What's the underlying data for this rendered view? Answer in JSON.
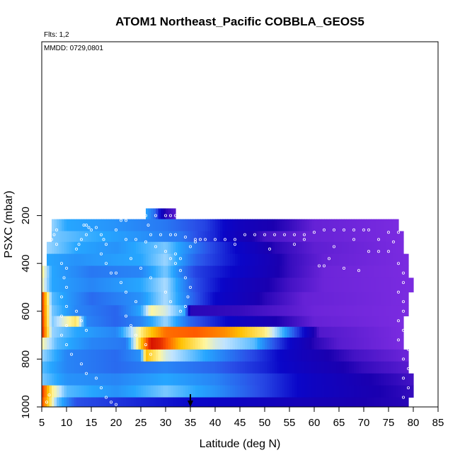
{
  "chart_data": {
    "type": "heatmap",
    "title": "ATOM1 Northeast_Pacific COBBLA_GEOS5",
    "subtitle_flights": "Flts: 1,2",
    "subtitle_dates": "MMDD: 0729,0801",
    "xlabel": "Latitude (deg N)",
    "ylabel": "PSXC (mbar)",
    "xlim": [
      5,
      85
    ],
    "ylim": [
      0,
      1000
    ],
    "y_reversed": true,
    "xticks": [
      5,
      10,
      15,
      20,
      25,
      30,
      35,
      40,
      45,
      50,
      55,
      60,
      65,
      70,
      75,
      80,
      85
    ],
    "yticks": [
      200,
      400,
      600,
      800,
      1000
    ],
    "grid": false,
    "arrow_marker_lat": 35,
    "colors": {
      "red": "#d40000",
      "orange": "#ff8a00",
      "yellow": "#ffe830",
      "light_cyan": "#cfeaff",
      "sky_blue": "#1e9bff",
      "mid_blue": "#1f55e6",
      "dark_blue": "#05009a",
      "purple": "#7a2be0",
      "violet": "#9a45ee"
    },
    "color_scale": [
      [
        0.0,
        "#7a2be0"
      ],
      [
        0.14,
        "#1a00b0"
      ],
      [
        0.3,
        "#0a06c8"
      ],
      [
        0.42,
        "#2a50e8"
      ],
      [
        0.55,
        "#26a6ff"
      ],
      [
        0.64,
        "#bfe3ff"
      ],
      [
        0.7,
        "#fff7a0"
      ],
      [
        0.8,
        "#ffc000"
      ],
      [
        0.9,
        "#ff5a00"
      ],
      [
        1.0,
        "#cc0000"
      ]
    ],
    "bands": [
      {
        "p_top": 170,
        "p_bot": 215,
        "lat_min": 26,
        "lat_max": 32,
        "stops": [
          [
            26,
            0.55
          ],
          [
            28,
            0.45
          ],
          [
            30,
            0.12
          ],
          [
            32,
            0.05
          ]
        ]
      },
      {
        "p_top": 215,
        "p_bot": 265,
        "lat_min": 7,
        "lat_max": 77,
        "stops": [
          [
            7,
            0.62
          ],
          [
            10,
            0.55
          ],
          [
            20,
            0.52
          ],
          [
            30,
            0.48
          ],
          [
            38,
            0.4
          ],
          [
            45,
            0.22
          ],
          [
            55,
            0.1
          ],
          [
            60,
            0.03
          ],
          [
            77,
            0.0
          ]
        ]
      },
      {
        "p_top": 265,
        "p_bot": 310,
        "lat_min": 7,
        "lat_max": 78,
        "stops": [
          [
            7,
            0.6
          ],
          [
            15,
            0.56
          ],
          [
            25,
            0.52
          ],
          [
            33,
            0.48
          ],
          [
            40,
            0.35
          ],
          [
            45,
            0.2
          ],
          [
            50,
            0.08
          ],
          [
            58,
            0.03
          ],
          [
            78,
            0.0
          ]
        ]
      },
      {
        "p_top": 310,
        "p_bot": 360,
        "lat_min": 6,
        "lat_max": 78,
        "stops": [
          [
            6,
            0.62
          ],
          [
            12,
            0.55
          ],
          [
            20,
            0.52
          ],
          [
            30,
            0.6
          ],
          [
            35,
            0.5
          ],
          [
            42,
            0.35
          ],
          [
            52,
            0.12
          ],
          [
            60,
            0.04
          ],
          [
            78,
            0.0
          ]
        ]
      },
      {
        "p_top": 360,
        "p_bot": 410,
        "lat_min": 6,
        "lat_max": 79,
        "stops": [
          [
            6,
            0.55
          ],
          [
            12,
            0.52
          ],
          [
            25,
            0.55
          ],
          [
            30,
            0.62
          ],
          [
            36,
            0.45
          ],
          [
            45,
            0.3
          ],
          [
            55,
            0.1
          ],
          [
            62,
            0.03
          ],
          [
            79,
            0.0
          ]
        ]
      },
      {
        "p_top": 410,
        "p_bot": 460,
        "lat_min": 5,
        "lat_max": 79,
        "stops": [
          [
            5,
            0.72
          ],
          [
            7,
            0.55
          ],
          [
            15,
            0.48
          ],
          [
            25,
            0.5
          ],
          [
            30,
            0.6
          ],
          [
            36,
            0.4
          ],
          [
            45,
            0.28
          ],
          [
            55,
            0.1
          ],
          [
            62,
            0.02
          ],
          [
            79,
            0.0
          ]
        ]
      },
      {
        "p_top": 460,
        "p_bot": 520,
        "lat_min": 5,
        "lat_max": 80,
        "stops": [
          [
            5,
            0.7
          ],
          [
            7,
            0.55
          ],
          [
            15,
            0.5
          ],
          [
            25,
            0.55
          ],
          [
            30,
            0.63
          ],
          [
            36,
            0.42
          ],
          [
            45,
            0.22
          ],
          [
            55,
            0.08
          ],
          [
            62,
            0.02
          ],
          [
            80,
            0.0
          ]
        ]
      },
      {
        "p_top": 520,
        "p_bot": 575,
        "lat_min": 5,
        "lat_max": 79,
        "stops": [
          [
            5,
            0.95
          ],
          [
            7,
            0.58
          ],
          [
            15,
            0.46
          ],
          [
            25,
            0.52
          ],
          [
            30,
            0.63
          ],
          [
            34,
            0.5
          ],
          [
            40,
            0.3
          ],
          [
            50,
            0.12
          ],
          [
            58,
            0.03
          ],
          [
            79,
            0.0
          ]
        ]
      },
      {
        "p_top": 575,
        "p_bot": 620,
        "lat_min": 5,
        "lat_max": 79,
        "stops": [
          [
            5,
            0.95
          ],
          [
            7,
            0.6
          ],
          [
            12,
            0.5
          ],
          [
            20,
            0.45
          ],
          [
            25,
            0.55
          ],
          [
            27,
            0.7
          ],
          [
            30,
            0.66
          ],
          [
            34,
            0.55
          ],
          [
            35,
            0.12
          ],
          [
            45,
            0.1
          ],
          [
            55,
            0.05
          ],
          [
            60,
            0.02
          ],
          [
            79,
            0.0
          ]
        ]
      },
      {
        "p_top": 620,
        "p_bot": 665,
        "lat_min": 5,
        "lat_max": 78,
        "stops": [
          [
            5,
            0.96
          ],
          [
            7,
            0.6
          ],
          [
            12,
            0.74
          ],
          [
            14,
            0.5
          ],
          [
            20,
            0.45
          ],
          [
            25,
            0.5
          ],
          [
            30,
            0.62
          ],
          [
            35,
            0.45
          ],
          [
            45,
            0.25
          ],
          [
            55,
            0.1
          ],
          [
            60,
            0.03
          ],
          [
            78,
            0.0
          ]
        ]
      },
      {
        "p_top": 665,
        "p_bot": 710,
        "lat_min": 5,
        "lat_max": 78,
        "stops": [
          [
            5,
            0.97
          ],
          [
            7,
            0.62
          ],
          [
            12,
            0.55
          ],
          [
            20,
            0.5
          ],
          [
            26,
            0.76
          ],
          [
            30,
            0.88
          ],
          [
            36,
            0.9
          ],
          [
            42,
            0.85
          ],
          [
            50,
            0.72
          ],
          [
            54,
            0.55
          ],
          [
            58,
            0.3
          ],
          [
            61,
            0.06
          ],
          [
            78,
            0.0
          ]
        ]
      },
      {
        "p_top": 710,
        "p_bot": 760,
        "lat_min": 5,
        "lat_max": 78,
        "stops": [
          [
            5,
            0.7
          ],
          [
            8,
            0.58
          ],
          [
            15,
            0.5
          ],
          [
            22,
            0.48
          ],
          [
            27,
            0.98
          ],
          [
            29,
            0.95
          ],
          [
            33,
            0.8
          ],
          [
            40,
            0.66
          ],
          [
            48,
            0.58
          ],
          [
            55,
            0.3
          ],
          [
            60,
            0.12
          ],
          [
            65,
            0.05
          ],
          [
            78,
            0.0
          ]
        ]
      },
      {
        "p_top": 760,
        "p_bot": 810,
        "lat_min": 5,
        "lat_max": 79,
        "stops": [
          [
            5,
            0.62
          ],
          [
            10,
            0.5
          ],
          [
            20,
            0.46
          ],
          [
            25,
            0.52
          ],
          [
            26,
            0.8
          ],
          [
            30,
            0.66
          ],
          [
            38,
            0.55
          ],
          [
            48,
            0.4
          ],
          [
            58,
            0.2
          ],
          [
            68,
            0.08
          ],
          [
            79,
            0.02
          ]
        ]
      },
      {
        "p_top": 810,
        "p_bot": 860,
        "lat_min": 5,
        "lat_max": 79,
        "stops": [
          [
            5,
            0.58
          ],
          [
            10,
            0.5
          ],
          [
            20,
            0.46
          ],
          [
            30,
            0.5
          ],
          [
            40,
            0.45
          ],
          [
            50,
            0.35
          ],
          [
            60,
            0.2
          ],
          [
            70,
            0.1
          ],
          [
            79,
            0.05
          ]
        ]
      },
      {
        "p_top": 860,
        "p_bot": 910,
        "lat_min": 5,
        "lat_max": 80,
        "stops": [
          [
            5,
            0.6
          ],
          [
            10,
            0.52
          ],
          [
            20,
            0.5
          ],
          [
            30,
            0.55
          ],
          [
            40,
            0.5
          ],
          [
            50,
            0.4
          ],
          [
            60,
            0.25
          ],
          [
            70,
            0.15
          ],
          [
            80,
            0.08
          ]
        ]
      },
      {
        "p_top": 910,
        "p_bot": 960,
        "lat_min": 5,
        "lat_max": 80,
        "stops": [
          [
            5,
            0.95
          ],
          [
            7,
            0.72
          ],
          [
            10,
            0.58
          ],
          [
            20,
            0.52
          ],
          [
            30,
            0.6
          ],
          [
            40,
            0.52
          ],
          [
            50,
            0.4
          ],
          [
            60,
            0.25
          ],
          [
            70,
            0.16
          ],
          [
            80,
            0.1
          ]
        ]
      },
      {
        "p_top": 960,
        "p_bot": 1000,
        "lat_min": 5,
        "lat_max": 79,
        "stops": [
          [
            5,
            0.92
          ],
          [
            8,
            0.6
          ],
          [
            12,
            0.42
          ],
          [
            25,
            0.35
          ],
          [
            40,
            0.28
          ],
          [
            55,
            0.2
          ],
          [
            70,
            0.14
          ],
          [
            79,
            0.12
          ]
        ]
      }
    ],
    "flight_track": [
      [
        26,
        200
      ],
      [
        28,
        200
      ],
      [
        30,
        200
      ],
      [
        31,
        200
      ],
      [
        32,
        200
      ],
      [
        26.5,
        240
      ],
      [
        27,
        280
      ],
      [
        29,
        280
      ],
      [
        31,
        280
      ],
      [
        32,
        280
      ],
      [
        34,
        290
      ],
      [
        36,
        300
      ],
      [
        38,
        300
      ],
      [
        40,
        300
      ],
      [
        42,
        300
      ],
      [
        44,
        300
      ],
      [
        46,
        280
      ],
      [
        48,
        280
      ],
      [
        50,
        280
      ],
      [
        52,
        280
      ],
      [
        54,
        280
      ],
      [
        56,
        280
      ],
      [
        58,
        280
      ],
      [
        60,
        270
      ],
      [
        62,
        260
      ],
      [
        64,
        260
      ],
      [
        66,
        260
      ],
      [
        68,
        260
      ],
      [
        70,
        260
      ],
      [
        71,
        260
      ],
      [
        75,
        270
      ],
      [
        77,
        270
      ],
      [
        71,
        350
      ],
      [
        73,
        350
      ],
      [
        75,
        350
      ],
      [
        13.5,
        240
      ],
      [
        14,
        240
      ],
      [
        14.5,
        250
      ],
      [
        21,
        220
      ],
      [
        22,
        220
      ],
      [
        8,
        260
      ],
      [
        7.5,
        280
      ],
      [
        7,
        300
      ],
      [
        8,
        320
      ],
      [
        12,
        340
      ],
      [
        12.5,
        320
      ],
      [
        13,
        300
      ],
      [
        14,
        280
      ],
      [
        15,
        260
      ],
      [
        16,
        250
      ],
      [
        17,
        280
      ],
      [
        17.5,
        300
      ],
      [
        18,
        320
      ],
      [
        20,
        260
      ],
      [
        22,
        300
      ],
      [
        24,
        300
      ],
      [
        26,
        310
      ],
      [
        28,
        330
      ],
      [
        30,
        350
      ],
      [
        31,
        380
      ],
      [
        32,
        400
      ],
      [
        33,
        430
      ],
      [
        34,
        460
      ],
      [
        35,
        500
      ],
      [
        34.5,
        540
      ],
      [
        34,
        580
      ],
      [
        33,
        380
      ],
      [
        32,
        360
      ],
      [
        35,
        330
      ],
      [
        36,
        310
      ],
      [
        37,
        300
      ],
      [
        61,
        410
      ],
      [
        62,
        410
      ],
      [
        66,
        420
      ],
      [
        73,
        300
      ],
      [
        76,
        310
      ],
      [
        77,
        400
      ],
      [
        78,
        440
      ],
      [
        78,
        480
      ],
      [
        77,
        520
      ],
      [
        78,
        560
      ],
      [
        78,
        600
      ],
      [
        77,
        640
      ],
      [
        78,
        680
      ],
      [
        77,
        720
      ],
      [
        79,
        760
      ],
      [
        78,
        800
      ],
      [
        79,
        840
      ],
      [
        78,
        880
      ],
      [
        79,
        920
      ],
      [
        78,
        960
      ],
      [
        9,
        400
      ],
      [
        10,
        420
      ],
      [
        9.5,
        460
      ],
      [
        10,
        500
      ],
      [
        9,
        540
      ],
      [
        10,
        580
      ],
      [
        9,
        620
      ],
      [
        10,
        660
      ],
      [
        9,
        700
      ],
      [
        10,
        740
      ],
      [
        11,
        780
      ],
      [
        13,
        820
      ],
      [
        14,
        860
      ],
      [
        16,
        880
      ],
      [
        17,
        920
      ],
      [
        18,
        960
      ],
      [
        12,
        600
      ],
      [
        13,
        640
      ],
      [
        14,
        680
      ],
      [
        22,
        620
      ],
      [
        23,
        660
      ],
      [
        24,
        700
      ],
      [
        26,
        740
      ],
      [
        27,
        780
      ],
      [
        20,
        440
      ],
      [
        21,
        480
      ],
      [
        22,
        520
      ],
      [
        24,
        560
      ],
      [
        17,
        360
      ],
      [
        18,
        400
      ],
      [
        19,
        440
      ],
      [
        23,
        380
      ],
      [
        25,
        420
      ],
      [
        27,
        460
      ],
      [
        30,
        520
      ],
      [
        31,
        560
      ],
      [
        33,
        600
      ],
      [
        6,
        980
      ],
      [
        6.5,
        950
      ],
      [
        19,
        980
      ],
      [
        20,
        990
      ],
      [
        44,
        320
      ],
      [
        51,
        340
      ],
      [
        56,
        320
      ],
      [
        63,
        380
      ],
      [
        69,
        430
      ],
      [
        68,
        300
      ],
      [
        64,
        330
      ],
      [
        58,
        300
      ]
    ]
  }
}
